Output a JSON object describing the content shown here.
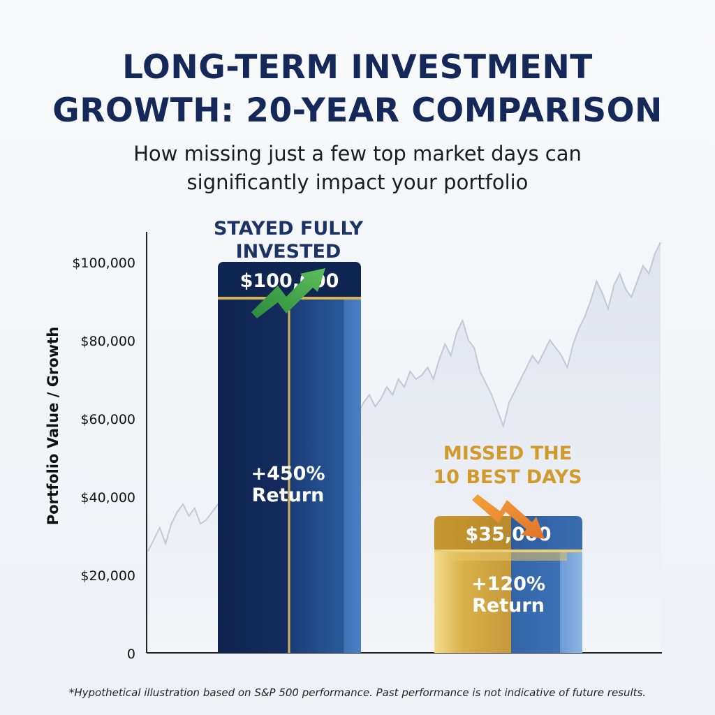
{
  "header": {
    "title_line1": "LONG-TERM INVESTMENT",
    "title_line2": "GROWTH: 20-YEAR COMPARISON",
    "subtitle_line1": "How missing just a few top market days can",
    "subtitle_line2": "significantly impact your portfolio"
  },
  "footnote": "*Hypothetical illustration based on S&P 500 performance. Past performance is not indicative of future results.",
  "chart_data": {
    "type": "bar",
    "ylabel": "Portfolio Value / Growth",
    "ylim": [
      0,
      100000
    ],
    "y_ticks": [
      {
        "value": 0,
        "label": "0"
      },
      {
        "value": 20000,
        "label": "$20,000"
      },
      {
        "value": 40000,
        "label": "$40,000"
      },
      {
        "value": 60000,
        "label": "$60,000"
      },
      {
        "value": 80000,
        "label": "$80,000"
      },
      {
        "value": 100000,
        "label": "$100,000"
      }
    ],
    "bars": [
      {
        "heading_line1": "STAYED FULLY",
        "heading_line2": "INVESTED",
        "value": 100000,
        "value_label": "$100,000",
        "return_line1": "+450%",
        "return_line2": "Return",
        "trend": "up",
        "heading_color": "#1c3366"
      },
      {
        "heading_line1": "MISSED THE",
        "heading_line2": "10 BEST DAYS",
        "value": 35000,
        "value_label": "$35,000",
        "return_line1": "+120%",
        "return_line2": "Return",
        "trend": "down",
        "heading_color": "#d09a2c"
      }
    ],
    "background_series": [
      26000,
      29000,
      32000,
      28000,
      33000,
      36000,
      38000,
      35000,
      37000,
      33000,
      34000,
      36000,
      38000,
      34000,
      30000,
      27000,
      31000,
      35000,
      38000,
      42000,
      45000,
      43000,
      47000,
      44000,
      48000,
      52000,
      50000,
      55000,
      58000,
      62000,
      64000,
      60000,
      59000,
      61000,
      60000,
      63000,
      61000,
      64000,
      66000,
      63000,
      65000,
      68000,
      66000,
      70000,
      68000,
      72000,
      70000,
      71000,
      73000,
      70000,
      75000,
      79000,
      76000,
      82000,
      85000,
      80000,
      78000,
      72000,
      69000,
      66000,
      62000,
      58000,
      64000,
      67000,
      70000,
      73000,
      76000,
      74000,
      77000,
      80000,
      78000,
      76000,
      73000,
      79000,
      83000,
      86000,
      90000,
      95000,
      92000,
      88000,
      94000,
      97000,
      93000,
      91000,
      95000,
      99000,
      97000,
      102000,
      105000
    ]
  }
}
